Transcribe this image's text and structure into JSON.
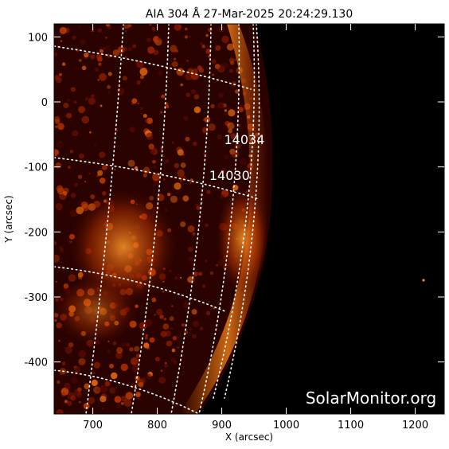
{
  "title": "AIA 304 Å 27-Mar-2025 20:24:29.130",
  "watermark": "SolarMonitor.org",
  "chart_data": {
    "type": "heatmap",
    "instrument": "AIA",
    "wavelength": "304 Å",
    "colormap": "dark-red-orange-yellow",
    "background_color": "#000000",
    "grid": "heliographic dotted lines",
    "xlabel": "X (arcsec)",
    "ylabel": "Y (arcsec)",
    "xlim": [
      640,
      1245
    ],
    "ylim": [
      -480,
      120
    ],
    "x_ticks": [
      700,
      800,
      900,
      1000,
      1100,
      1200
    ],
    "y_ticks": [
      100,
      0,
      -100,
      -200,
      -300,
      -400
    ],
    "limb_x_at_y0": 955,
    "regions": [
      {
        "name": "14034",
        "x": 935,
        "y": -65
      },
      {
        "name": "14030",
        "x": 912,
        "y": -120
      }
    ]
  }
}
